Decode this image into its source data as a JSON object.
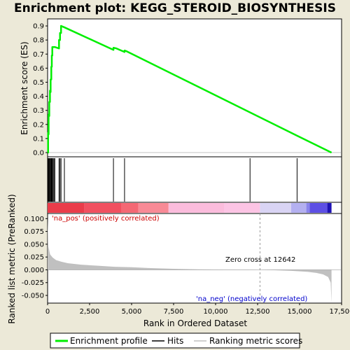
{
  "chart_data": {
    "type": "line",
    "title": "Enrichment plot: KEGG_STEROID_BIOSYNTHESIS",
    "xlabel": "Rank in Ordered Dataset",
    "ylabel_top": "Enrichment score (ES)",
    "ylabel_bottom": "Ranked list metric (PreRanked)",
    "xlim": [
      0,
      17500
    ],
    "x_ticks": [
      0,
      2500,
      5000,
      7500,
      10000,
      12500,
      15000,
      17500
    ],
    "x_tick_labels": [
      "0",
      "2,500",
      "5,000",
      "7,500",
      "10,000",
      "12,500",
      "15,000",
      "17,500"
    ],
    "es_ylim": [
      -0.03,
      0.95
    ],
    "es_ticks": [
      0.0,
      0.1,
      0.2,
      0.3,
      0.4,
      0.5,
      0.6,
      0.7,
      0.8,
      0.9
    ],
    "es_tick_labels": [
      "0.0",
      "0.1",
      "0.2",
      "0.3",
      "0.4",
      "0.5",
      "0.6",
      "0.7",
      "0.8",
      "0.9"
    ],
    "metric_ylim": [
      -0.065,
      0.11
    ],
    "metric_ticks": [
      0.1,
      0.075,
      0.05,
      0.025,
      0.0,
      -0.025,
      -0.05
    ],
    "metric_tick_labels": [
      "0.100",
      "0.075",
      "0.050",
      "0.025",
      "0.000",
      "-0.025",
      "-0.050"
    ],
    "enrichment_profile": {
      "name": "Enrichment profile",
      "color": "#00ee00",
      "x": [
        0,
        30,
        30,
        60,
        60,
        100,
        100,
        140,
        140,
        180,
        180,
        220,
        220,
        250,
        250,
        280,
        280,
        330,
        330,
        380,
        380,
        430,
        430,
        680,
        680,
        740,
        740,
        800,
        800,
        1000,
        1000,
        3920,
        3920,
        4100,
        4580,
        4580,
        4700,
        14850,
        14850,
        16900
      ],
      "y": [
        0.0,
        0.0,
        0.14,
        0.13,
        0.27,
        0.26,
        0.36,
        0.36,
        0.44,
        0.43,
        0.52,
        0.52,
        0.61,
        0.61,
        0.69,
        0.69,
        0.75,
        0.75,
        0.75,
        0.75,
        0.75,
        0.75,
        0.75,
        0.74,
        0.8,
        0.8,
        0.85,
        0.85,
        0.9,
        0.89,
        0.89,
        0.73,
        0.745,
        0.74,
        0.715,
        0.725,
        0.72,
        0.12,
        0.12,
        0.0
      ]
    },
    "hits": {
      "name": "Hits",
      "color": "#000000",
      "positions": [
        30,
        60,
        100,
        140,
        180,
        220,
        250,
        280,
        330,
        380,
        430,
        680,
        740,
        800,
        1000,
        3920,
        4580,
        12050,
        14850
      ]
    },
    "ranking_metric": {
      "name": "Ranking metric scores",
      "color": "#c0c0c0",
      "x": [
        0,
        50,
        150,
        300,
        500,
        800,
        1200,
        2000,
        3000,
        4000,
        5000,
        6000,
        7500,
        9000,
        10500,
        12000,
        12642,
        13500,
        14500,
        15500,
        16000,
        16400,
        16700,
        16850,
        16900
      ],
      "y": [
        0.1,
        0.045,
        0.03,
        0.024,
        0.019,
        0.016,
        0.013,
        0.01,
        0.008,
        0.006,
        0.005,
        0.0035,
        0.002,
        0.001,
        0.0005,
        0.0002,
        0.0,
        -0.0008,
        -0.002,
        -0.004,
        -0.006,
        -0.009,
        -0.014,
        -0.025,
        -0.065
      ]
    },
    "zero_cross": 12642,
    "zero_cross_label": "Zero cross at 12642",
    "pos_label": "'na_pos' (positively correlated)",
    "neg_label": "'na_neg' (negatively correlated)",
    "pos_label_color": "#cc0000",
    "neg_label_color": "#0000cc",
    "color_bar": [
      {
        "start": 0,
        "end": 2200,
        "color": "#ea3c4a"
      },
      {
        "start": 2200,
        "end": 4400,
        "color": "#f15060"
      },
      {
        "start": 4400,
        "end": 5400,
        "color": "#f46874"
      },
      {
        "start": 5400,
        "end": 7200,
        "color": "#f88a96"
      },
      {
        "start": 7200,
        "end": 10500,
        "color": "#fbbcdc"
      },
      {
        "start": 10500,
        "end": 12642,
        "color": "#fcc4e4"
      },
      {
        "start": 12642,
        "end": 14500,
        "color": "#d9d4f4"
      },
      {
        "start": 14500,
        "end": 15400,
        "color": "#b4b0f0"
      },
      {
        "start": 15400,
        "end": 15600,
        "color": "#8a84ec"
      },
      {
        "start": 15600,
        "end": 16650,
        "color": "#5d4fe4"
      },
      {
        "start": 16650,
        "end": 16900,
        "color": "#1e12b4"
      }
    ],
    "legend": {
      "items": [
        "Enrichment profile",
        "Hits",
        "Ranking metric scores"
      ],
      "placement": "bottom"
    }
  }
}
